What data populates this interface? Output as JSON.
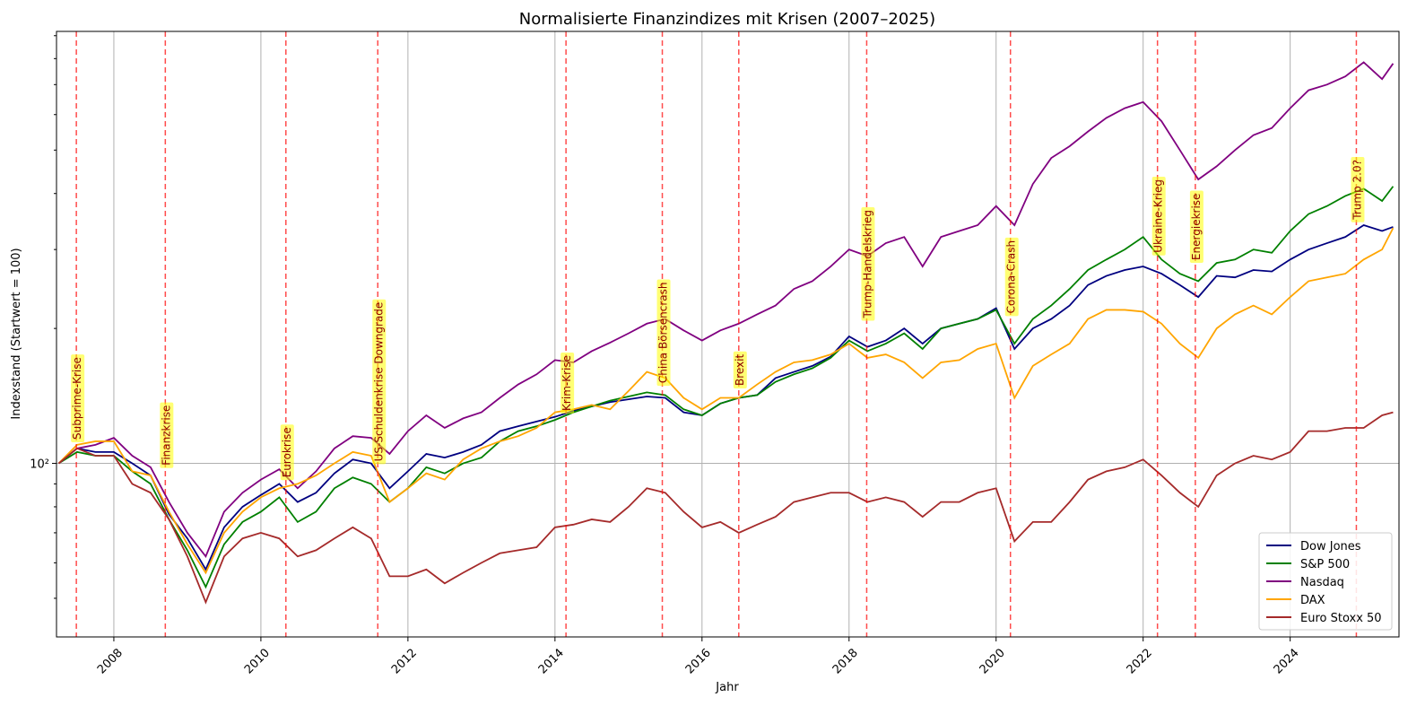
{
  "chart_data": {
    "type": "line",
    "title": "Normalisierte Finanzindizes mit Krisen (2007–2025)",
    "xlabel": "Jahr",
    "ylabel": "Indexstand (Startwert = 100)",
    "log_y": true,
    "grid": true,
    "legend": "lower right",
    "xlim": [
      2007.22,
      2025.48
    ],
    "xticks": [
      2008,
      2010,
      2012,
      2014,
      2016,
      2018,
      2020,
      2022,
      2024
    ],
    "ylim": [
      41,
      920
    ],
    "yticks": [
      {
        "value": 100,
        "label": "10²"
      }
    ],
    "yminorticks": [
      50,
      60,
      70,
      80,
      90,
      200,
      300,
      400,
      500,
      600,
      700,
      800,
      900
    ],
    "x": [
      2007.25,
      2007.5,
      2007.75,
      2008,
      2008.25,
      2008.5,
      2008.75,
      2009,
      2009.25,
      2009.5,
      2009.75,
      2010,
      2010.25,
      2010.5,
      2010.75,
      2011,
      2011.25,
      2011.5,
      2011.75,
      2012,
      2012.25,
      2012.5,
      2012.75,
      2013,
      2013.25,
      2013.5,
      2013.75,
      2014,
      2014.25,
      2014.5,
      2014.75,
      2015,
      2015.25,
      2015.5,
      2015.75,
      2016,
      2016.25,
      2016.5,
      2016.75,
      2017,
      2017.25,
      2017.5,
      2017.75,
      2018,
      2018.25,
      2018.5,
      2018.75,
      2019,
      2019.25,
      2019.5,
      2019.75,
      2020,
      2020.25,
      2020.5,
      2020.75,
      2021,
      2021.25,
      2021.5,
      2021.75,
      2022,
      2022.25,
      2022.5,
      2022.75,
      2023,
      2023.25,
      2023.5,
      2023.75,
      2024,
      2024.25,
      2024.5,
      2024.75,
      2025,
      2025.25,
      2025.4
    ],
    "series": [
      {
        "name": "Dow Jones",
        "color": "#000080",
        "values": [
          100,
          108,
          106,
          106,
          100,
          94,
          77,
          68,
          58,
          72,
          80,
          85,
          90,
          82,
          86,
          95,
          102,
          100,
          88,
          96,
          105,
          103,
          106,
          110,
          118,
          121,
          124,
          127,
          131,
          134,
          137,
          139,
          141,
          140,
          130,
          128,
          136,
          140,
          142,
          155,
          160,
          165,
          173,
          192,
          182,
          188,
          200,
          185,
          200,
          205,
          210,
          222,
          180,
          200,
          210,
          225,
          250,
          262,
          270,
          275,
          265,
          250,
          235,
          262,
          260,
          270,
          268,
          285,
          300,
          310,
          320,
          340,
          330,
          337
        ]
      },
      {
        "name": "S&P 500",
        "color": "#008000",
        "values": [
          100,
          106,
          104,
          104,
          96,
          90,
          75,
          64,
          53,
          66,
          74,
          78,
          84,
          74,
          78,
          88,
          93,
          90,
          82,
          88,
          98,
          95,
          100,
          103,
          112,
          118,
          121,
          125,
          130,
          134,
          138,
          141,
          144,
          142,
          132,
          128,
          136,
          140,
          142,
          152,
          158,
          163,
          172,
          188,
          178,
          185,
          195,
          180,
          200,
          205,
          210,
          220,
          185,
          210,
          225,
          245,
          270,
          285,
          300,
          320,
          285,
          265,
          255,
          280,
          285,
          300,
          295,
          330,
          360,
          375,
          395,
          410,
          385,
          415
        ]
      },
      {
        "name": "Nasdaq",
        "color": "#800080",
        "values": [
          100,
          108,
          110,
          114,
          104,
          98,
          82,
          70,
          62,
          78,
          86,
          92,
          97,
          88,
          96,
          108,
          115,
          114,
          105,
          118,
          128,
          120,
          126,
          130,
          140,
          150,
          158,
          170,
          168,
          178,
          186,
          195,
          205,
          210,
          198,
          188,
          198,
          205,
          215,
          225,
          245,
          255,
          275,
          300,
          290,
          310,
          320,
          275,
          320,
          330,
          340,
          375,
          340,
          420,
          480,
          510,
          550,
          590,
          620,
          640,
          580,
          500,
          430,
          460,
          500,
          540,
          560,
          620,
          680,
          700,
          730,
          785,
          720,
          780
        ]
      },
      {
        "name": "DAX",
        "color": "#ffa500",
        "values": [
          100,
          110,
          112,
          112,
          96,
          94,
          78,
          66,
          57,
          70,
          78,
          84,
          88,
          90,
          94,
          100,
          106,
          104,
          82,
          88,
          95,
          92,
          102,
          108,
          112,
          115,
          120,
          130,
          132,
          135,
          132,
          145,
          160,
          155,
          140,
          132,
          140,
          140,
          150,
          160,
          168,
          170,
          175,
          185,
          172,
          175,
          168,
          155,
          168,
          170,
          180,
          185,
          140,
          165,
          175,
          185,
          210,
          220,
          220,
          218,
          205,
          185,
          172,
          200,
          215,
          225,
          215,
          235,
          255,
          260,
          265,
          285,
          300,
          335
        ]
      },
      {
        "name": "Euro Stoxx 50",
        "color": "#a52a2a",
        "values": [
          100,
          108,
          104,
          104,
          90,
          86,
          75,
          62,
          49,
          62,
          68,
          70,
          68,
          62,
          64,
          68,
          72,
          68,
          56,
          56,
          58,
          54,
          57,
          60,
          63,
          64,
          65,
          72,
          73,
          75,
          74,
          80,
          88,
          86,
          78,
          72,
          74,
          70,
          73,
          76,
          82,
          84,
          86,
          86,
          82,
          84,
          82,
          76,
          82,
          82,
          86,
          88,
          67,
          74,
          74,
          82,
          92,
          96,
          98,
          102,
          94,
          86,
          80,
          94,
          100,
          104,
          102,
          106,
          118,
          118,
          120,
          120,
          128,
          130
        ]
      }
    ],
    "annotations": [
      {
        "x": 2007.49,
        "y": 113,
        "label": "Subprime-Krise"
      },
      {
        "x": 2008.7,
        "y": 99,
        "label": "Finanzkrise"
      },
      {
        "x": 2010.34,
        "y": 93,
        "label": "Eurokrise"
      },
      {
        "x": 2011.59,
        "y": 101,
        "label": "US-Schuldenkrise Downgrade"
      },
      {
        "x": 2014.15,
        "y": 131,
        "label": "Krim-Krise"
      },
      {
        "x": 2015.46,
        "y": 151,
        "label": "China Börsencrash"
      },
      {
        "x": 2016.5,
        "y": 149,
        "label": "Brexit"
      },
      {
        "x": 2018.24,
        "y": 211,
        "label": "Trump-Handelskrieg"
      },
      {
        "x": 2020.195,
        "y": 216,
        "label": "Corona-Crash"
      },
      {
        "x": 2022.195,
        "y": 295,
        "label": "Ukraine-Krieg"
      },
      {
        "x": 2022.71,
        "y": 284,
        "label": "Energiekrise"
      },
      {
        "x": 2024.9,
        "y": 350,
        "label": "Trump 2.0?"
      }
    ]
  }
}
